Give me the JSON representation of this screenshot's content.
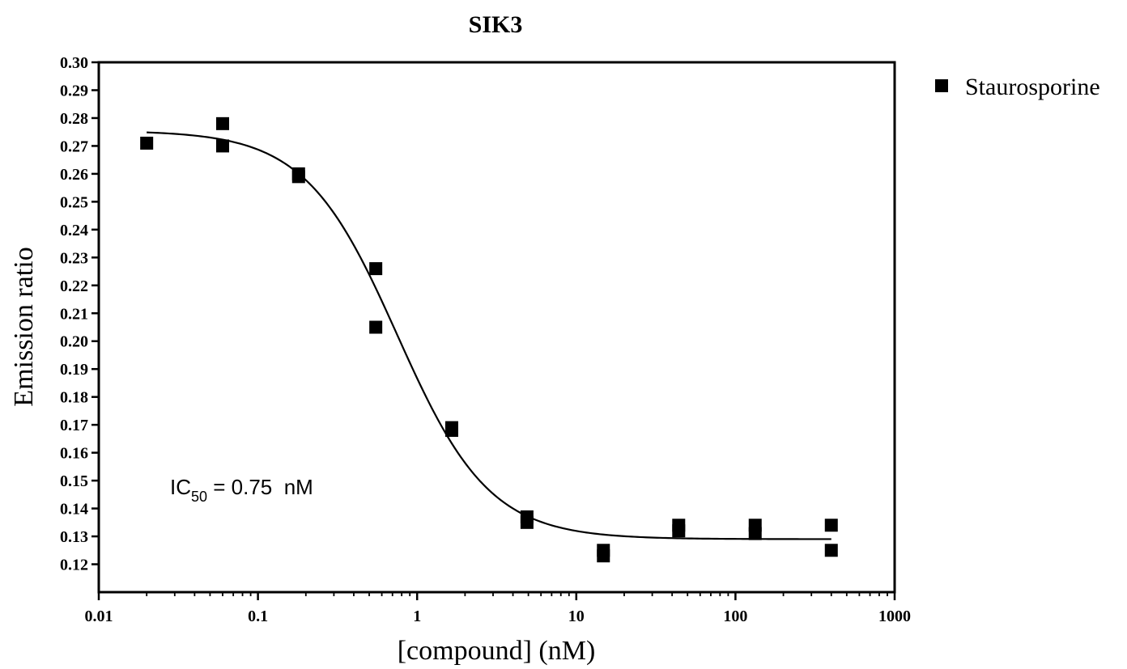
{
  "chart_data": {
    "type": "scatter",
    "title": "SIK3",
    "xlabel": "[compound] (nM)",
    "ylabel": "Emission ratio",
    "xscale": "log",
    "xlim": [
      0.01,
      1000
    ],
    "ylim": [
      0.11,
      0.3
    ],
    "x_ticks": [
      0.01,
      0.1,
      1,
      10,
      100,
      1000
    ],
    "x_tick_labels": [
      "0.01",
      "0.1",
      "1",
      "10",
      "100",
      "1000"
    ],
    "y_ticks": [
      0.12,
      0.13,
      0.14,
      0.15,
      0.16,
      0.17,
      0.18,
      0.19,
      0.2,
      0.21,
      0.22,
      0.23,
      0.24,
      0.25,
      0.26,
      0.27,
      0.28,
      0.29,
      0.3
    ],
    "y_tick_labels": [
      "0.12",
      "0.13",
      "0.14",
      "0.15",
      "0.16",
      "0.17",
      "0.18",
      "0.19",
      "0.20",
      "0.21",
      "0.22",
      "0.23",
      "0.24",
      "0.25",
      "0.26",
      "0.27",
      "0.28",
      "0.29",
      "0.30"
    ],
    "grid": false,
    "legend": {
      "placement": "outside-top-right",
      "entries": [
        "Staurosporine"
      ]
    },
    "series": [
      {
        "name": "Staurosporine",
        "marker": "square",
        "color": "#000000",
        "points": [
          {
            "x": 0.02,
            "y": 0.271
          },
          {
            "x": 0.06,
            "y": 0.278
          },
          {
            "x": 0.06,
            "y": 0.27
          },
          {
            "x": 0.18,
            "y": 0.26
          },
          {
            "x": 0.18,
            "y": 0.259
          },
          {
            "x": 0.55,
            "y": 0.226
          },
          {
            "x": 0.55,
            "y": 0.205
          },
          {
            "x": 1.65,
            "y": 0.169
          },
          {
            "x": 1.65,
            "y": 0.168
          },
          {
            "x": 4.9,
            "y": 0.137
          },
          {
            "x": 4.9,
            "y": 0.135
          },
          {
            "x": 14.8,
            "y": 0.125
          },
          {
            "x": 14.8,
            "y": 0.123
          },
          {
            "x": 44,
            "y": 0.134
          },
          {
            "x": 44,
            "y": 0.132
          },
          {
            "x": 133,
            "y": 0.134
          },
          {
            "x": 133,
            "y": 0.131
          },
          {
            "x": 400,
            "y": 0.134
          },
          {
            "x": 400,
            "y": 0.125
          }
        ]
      }
    ],
    "fit_curve": {
      "model": "sigmoidal-dose-response",
      "top": 0.2755,
      "bottom": 0.129,
      "ic50": 0.75,
      "hill_slope": 1.5,
      "x_range": [
        0.02,
        400
      ]
    },
    "annotation": {
      "prefix": "IC",
      "subscript": "50",
      "suffix": " = 0.75  nM"
    }
  }
}
